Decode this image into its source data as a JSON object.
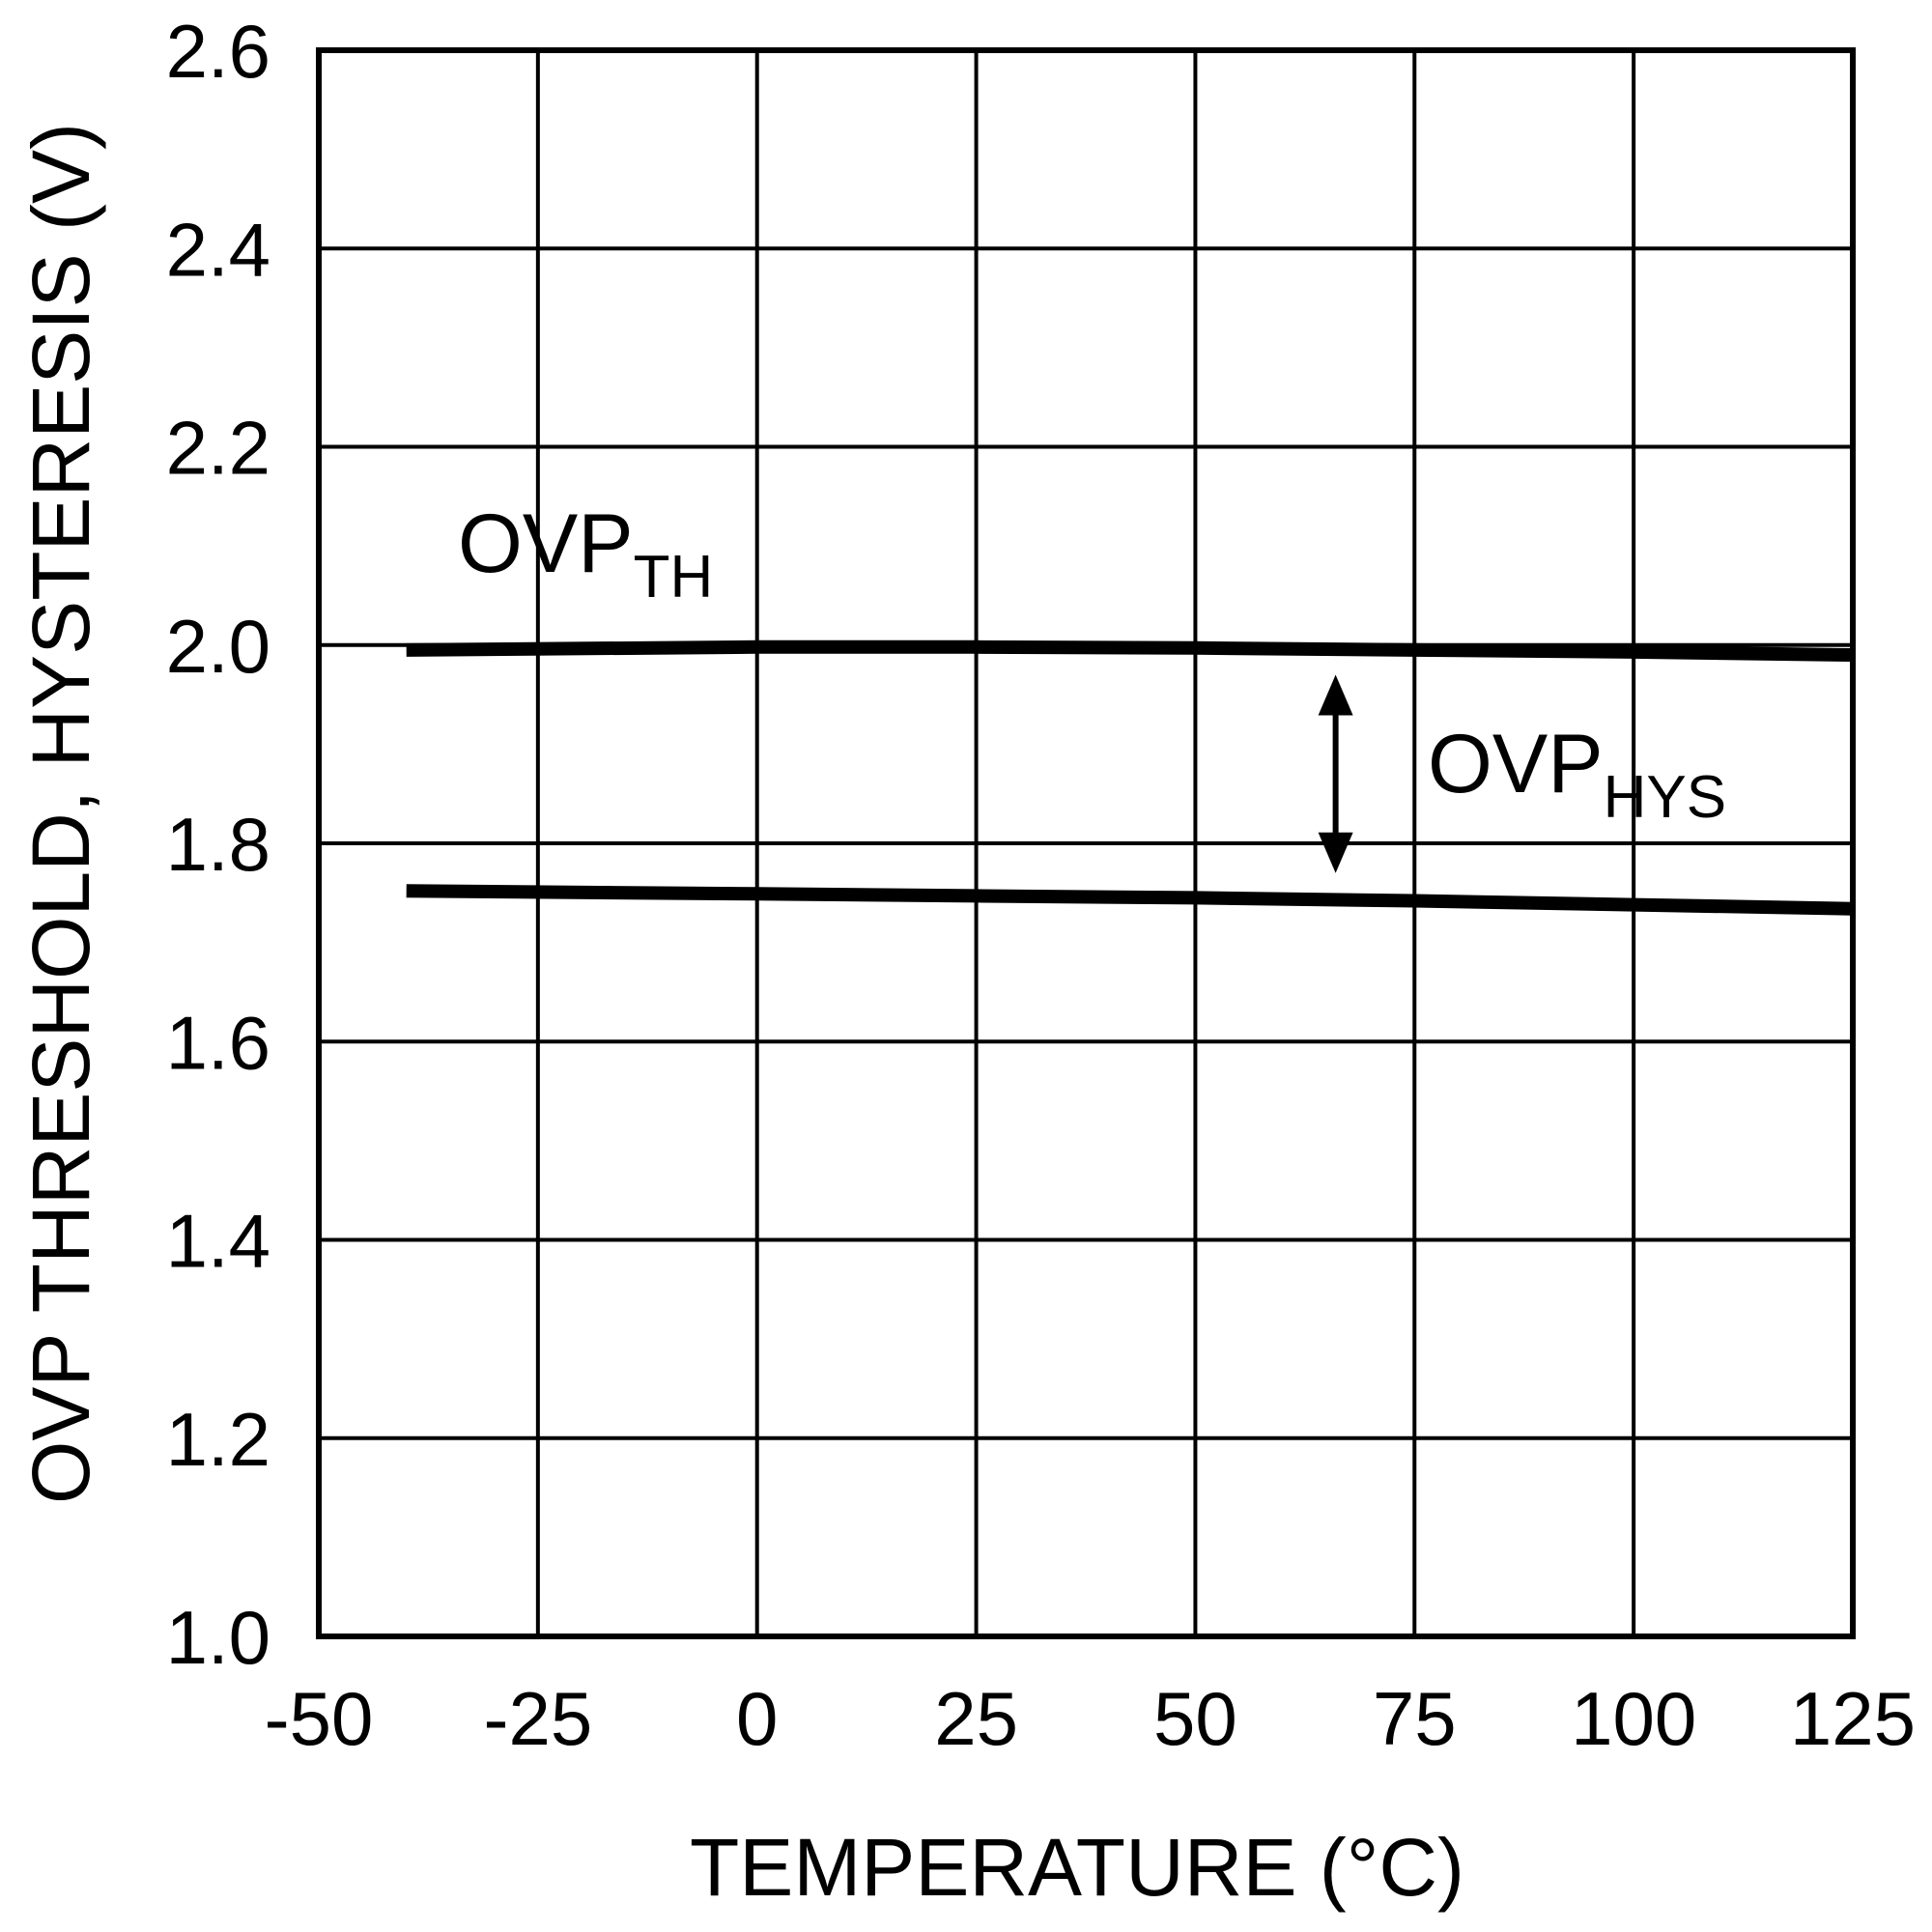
{
  "chart_data": {
    "type": "line",
    "title": "",
    "xlabel": "TEMPERATURE (°C)",
    "ylabel": "OVP THRESHOLD, HYSTERESIS (V)",
    "xlim": [
      -50,
      125
    ],
    "ylim": [
      1.0,
      2.6
    ],
    "xticks": [
      -50,
      -25,
      0,
      25,
      50,
      75,
      100,
      125
    ],
    "yticks": [
      1.0,
      1.2,
      1.4,
      1.6,
      1.8,
      2.0,
      2.2,
      2.4,
      2.6
    ],
    "xtick_labels": [
      "-50",
      "-25",
      "0",
      "25",
      "50",
      "75",
      "100",
      "125"
    ],
    "ytick_labels": [
      "1.0",
      "1.2",
      "1.4",
      "1.6",
      "1.8",
      "2.0",
      "2.2",
      "2.4",
      "2.6"
    ],
    "grid": true,
    "series": [
      {
        "name": "OVP_TH",
        "label_main": "OVP",
        "label_sub": "TH",
        "x": [
          -40,
          0,
          25,
          50,
          75,
          100,
          125
        ],
        "y": [
          1.995,
          1.998,
          1.998,
          1.997,
          1.995,
          1.993,
          1.99
        ]
      },
      {
        "name": "OVP_HYS",
        "label_main": "OVP",
        "label_sub": "HYS",
        "x": [
          -40,
          0,
          25,
          50,
          75,
          100,
          125
        ],
        "y": [
          1.752,
          1.749,
          1.747,
          1.745,
          1.742,
          1.738,
          1.734
        ]
      }
    ],
    "annotations": [
      {
        "type": "double-arrow",
        "x": 66,
        "y_from": 1.97,
        "y_to": 1.77,
        "label_series": "OVP_HYS"
      }
    ]
  }
}
